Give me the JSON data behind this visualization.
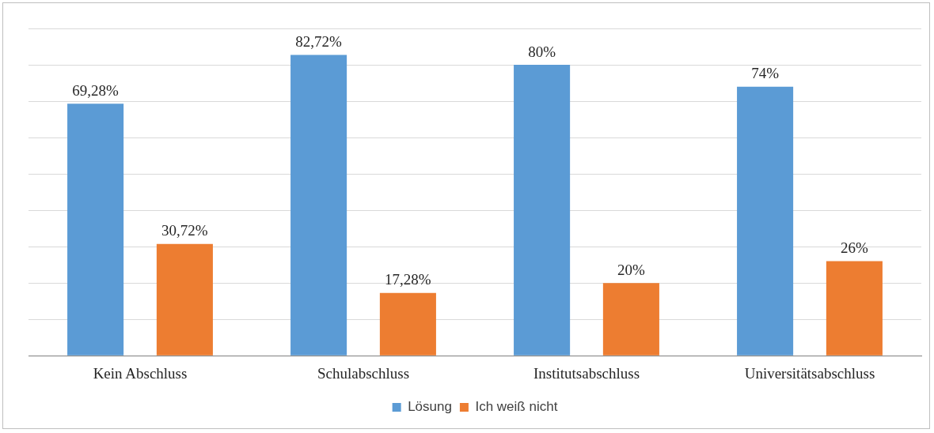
{
  "chart_data": {
    "type": "bar",
    "categories": [
      "Kein Abschluss",
      "Schulabschluss",
      "Institutsabschluss",
      "Universitätsabschluss"
    ],
    "series": [
      {
        "name": "Lösung",
        "color": "#5b9bd5",
        "values": [
          69.28,
          82.72,
          80,
          74
        ],
        "value_labels": [
          "69,28%",
          "82,72%",
          "80%",
          "74%"
        ]
      },
      {
        "name": "Ich weiß nicht",
        "color": "#ed7d31",
        "values": [
          30.72,
          17.28,
          20,
          26
        ],
        "value_labels": [
          "30,72%",
          "17,28%",
          "20%",
          "26%"
        ]
      }
    ],
    "ylim": [
      0,
      90
    ],
    "yticks": [
      {
        "value": 0,
        "label": null
      },
      {
        "value": 10,
        "label": null
      },
      {
        "value": 20,
        "label": null
      },
      {
        "value": 30,
        "label": null
      },
      {
        "value": 40,
        "label": null
      },
      {
        "value": 50,
        "label": null
      },
      {
        "value": 60,
        "label": null
      },
      {
        "value": 70,
        "label": null
      },
      {
        "value": 80,
        "label": null
      },
      {
        "value": 90,
        "label": null
      }
    ],
    "grid": "y",
    "legend": "bottom",
    "tick_labels": "x"
  }
}
